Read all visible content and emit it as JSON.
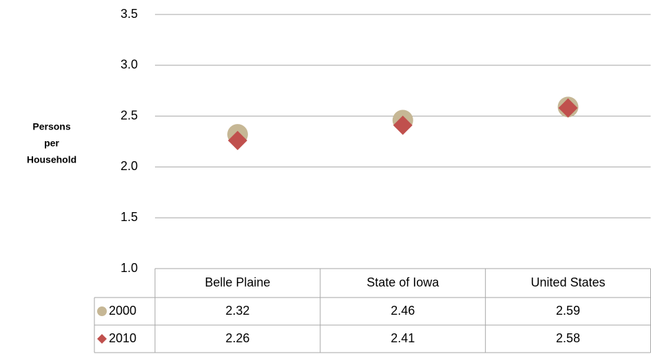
{
  "chart_data": {
    "type": "dot",
    "y_label": [
      "Persons",
      "per",
      "Household"
    ],
    "categories": [
      "Belle Plaine",
      "State of Iowa",
      "United States"
    ],
    "series": [
      {
        "name": "2000",
        "color": "#c6b795",
        "marker": "circle",
        "values": [
          2.32,
          2.46,
          2.59
        ]
      },
      {
        "name": "2010",
        "color": "#c0504d",
        "marker": "diamond",
        "values": [
          2.26,
          2.41,
          2.58
        ]
      }
    ],
    "ylim": [
      1.0,
      3.5
    ],
    "yticks": [
      {
        "value": 1.0,
        "label": "1.0"
      },
      {
        "value": 1.5,
        "label": "1.5"
      },
      {
        "value": 2.0,
        "label": "2.0"
      },
      {
        "value": 2.5,
        "label": "2.5"
      },
      {
        "value": 3.0,
        "label": "3.0"
      },
      {
        "value": 3.5,
        "label": "3.5"
      }
    ],
    "grid": true,
    "data_table": true
  }
}
